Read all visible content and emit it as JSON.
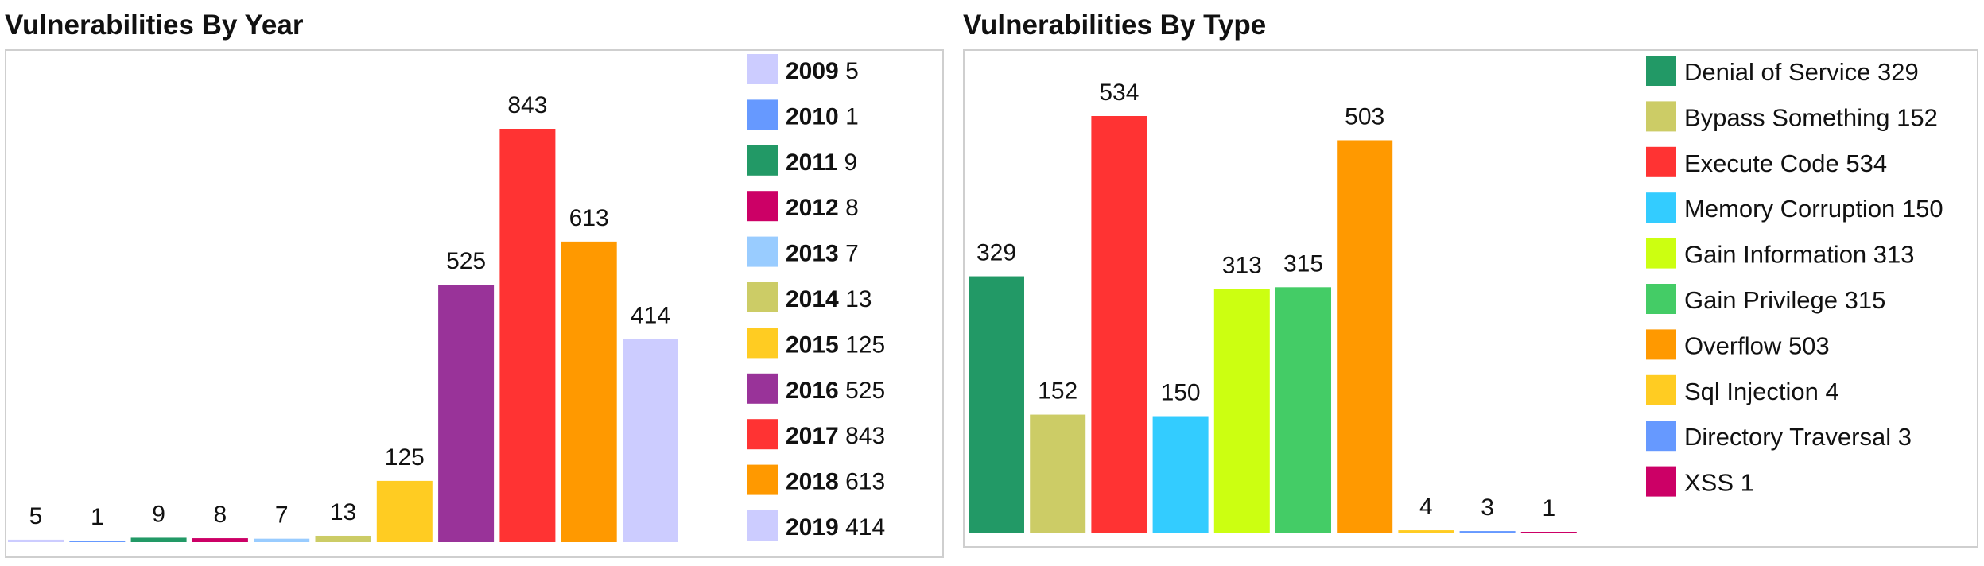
{
  "chart_data": [
    {
      "type": "bar",
      "title": "Vulnerabilities By Year",
      "xlabel": "",
      "ylabel": "",
      "ylim": [
        0,
        843
      ],
      "grid": false,
      "legend_position": "right",
      "categories": [
        "2009",
        "2010",
        "2011",
        "2012",
        "2013",
        "2014",
        "2015",
        "2016",
        "2017",
        "2018",
        "2019"
      ],
      "values": [
        5,
        1,
        9,
        8,
        7,
        13,
        125,
        525,
        843,
        613,
        414
      ],
      "colors": [
        "#ccccff",
        "#6699ff",
        "#229966",
        "#cc0066",
        "#99ccff",
        "#cccc66",
        "#ffcc22",
        "#993399",
        "#ff3333",
        "#ff9900",
        "#ccccff"
      ]
    },
    {
      "type": "bar",
      "title": "Vulnerabilities By Type",
      "xlabel": "",
      "ylabel": "",
      "ylim": [
        0,
        534
      ],
      "grid": false,
      "legend_position": "right",
      "categories": [
        "Denial of Service",
        "Bypass Something",
        "Execute Code",
        "Memory Corruption",
        "Gain Information",
        "Gain Privilege",
        "Overflow",
        "Sql Injection",
        "Directory Traversal",
        "XSS"
      ],
      "values": [
        329,
        152,
        534,
        150,
        313,
        315,
        503,
        4,
        3,
        1
      ],
      "colors": [
        "#229966",
        "#cccc66",
        "#ff3333",
        "#33ccff",
        "#ccff11",
        "#44cc66",
        "#ff9900",
        "#ffcc22",
        "#6699ff",
        "#cc0066"
      ]
    }
  ]
}
